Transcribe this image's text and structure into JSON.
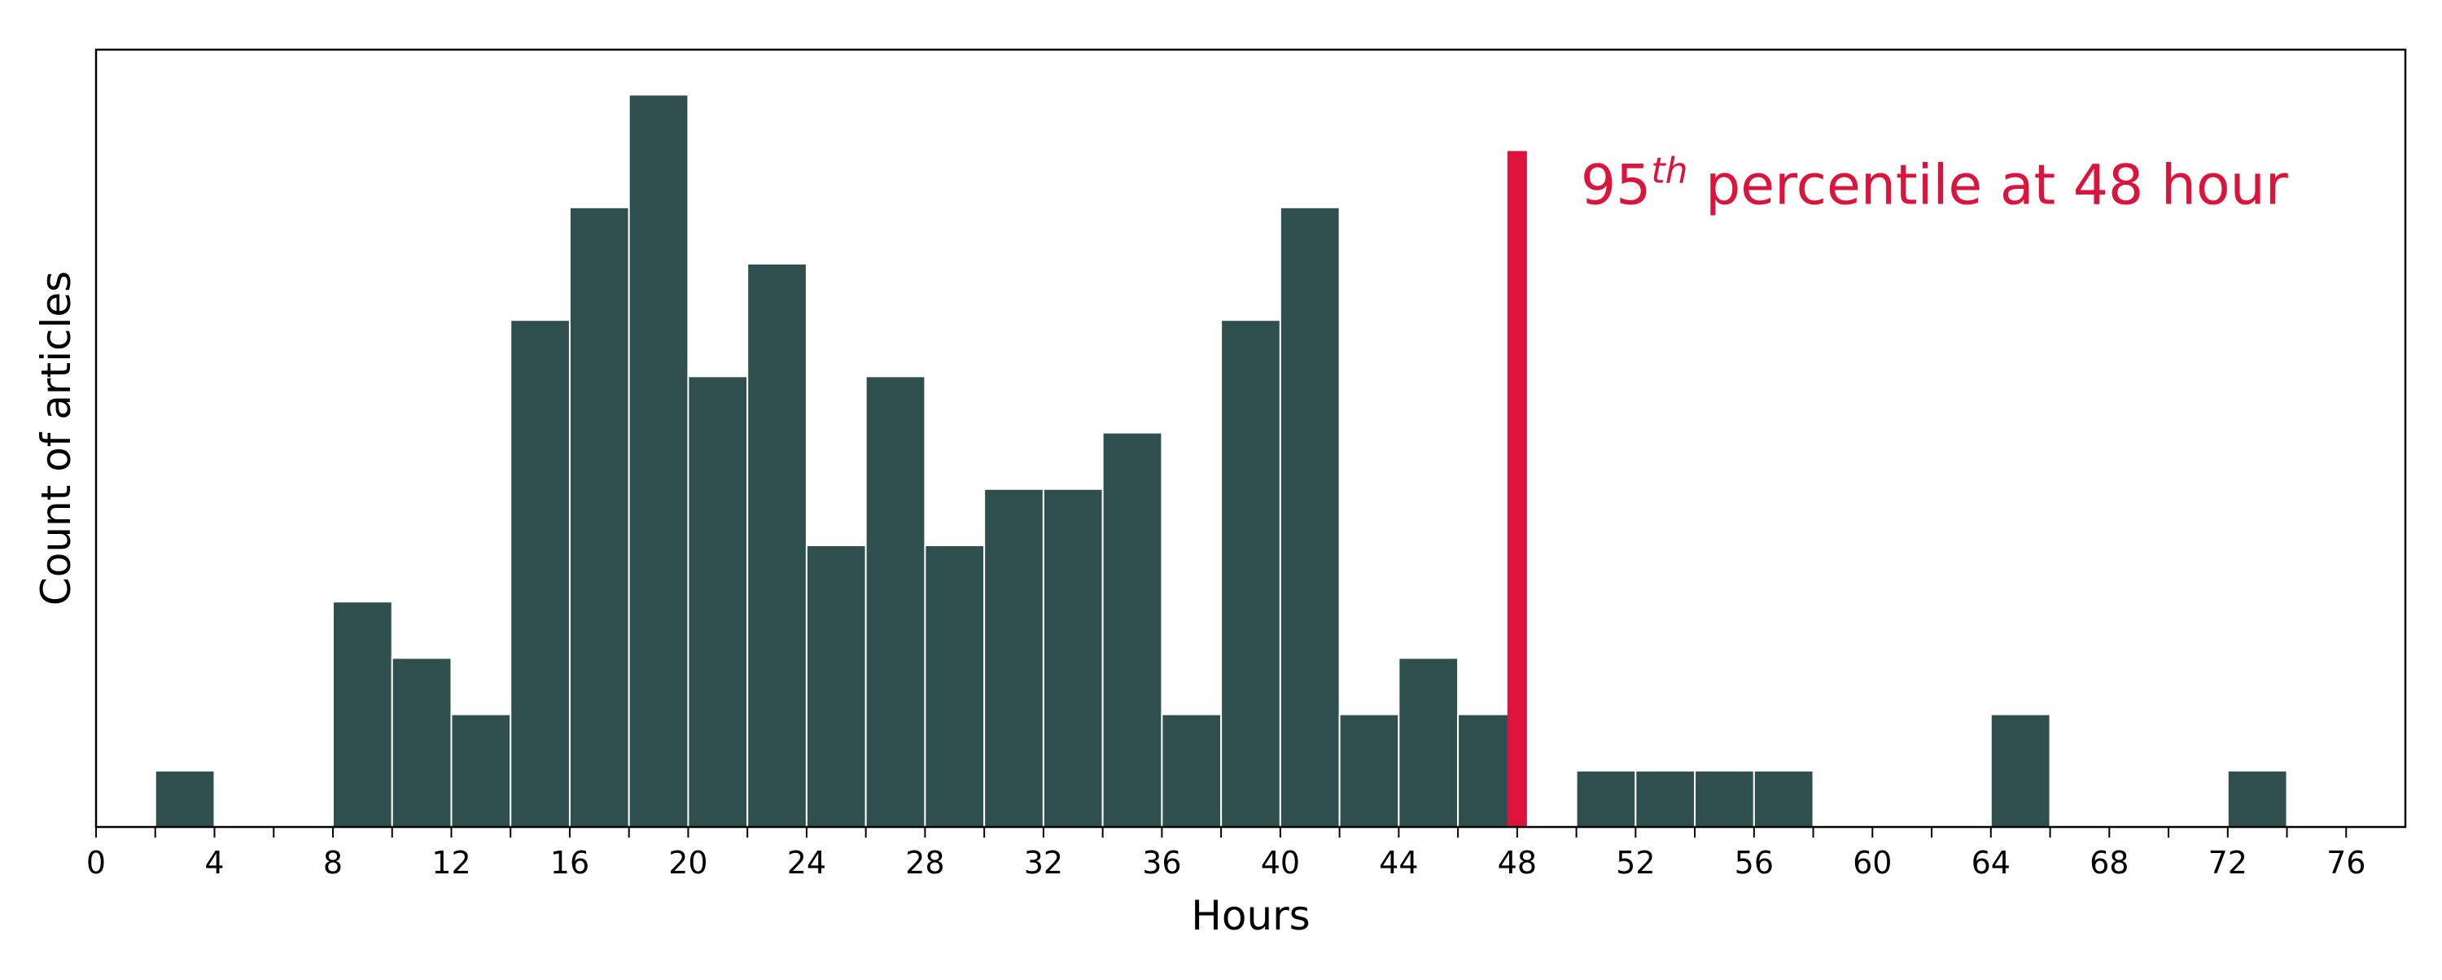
{
  "chart_data": {
    "type": "bar",
    "xlabel": "Hours",
    "ylabel": "Count of articles",
    "xlim": [
      0,
      78
    ],
    "ylim": [
      0,
      13.8
    ],
    "x_ticks": [
      0,
      2,
      4,
      6,
      8,
      10,
      12,
      14,
      16,
      18,
      20,
      22,
      24,
      26,
      28,
      30,
      32,
      34,
      36,
      38,
      40,
      42,
      44,
      46,
      48,
      50,
      52,
      54,
      56,
      58,
      60,
      62,
      64,
      66,
      68,
      70,
      72,
      74,
      76
    ],
    "x_tick_labels": [
      "0",
      "",
      "4",
      "",
      "8",
      "",
      "12",
      "",
      "16",
      "",
      "20",
      "",
      "24",
      "",
      "28",
      "",
      "32",
      "",
      "36",
      "",
      "40",
      "",
      "44",
      "",
      "48",
      "",
      "52",
      "",
      "56",
      "",
      "60",
      "",
      "64",
      "",
      "68",
      "",
      "72",
      "",
      "76"
    ],
    "y_ticks_shown": false,
    "grid": false,
    "bin_width": 2,
    "bins": [
      {
        "start": 2,
        "count": 1
      },
      {
        "start": 8,
        "count": 4
      },
      {
        "start": 10,
        "count": 3
      },
      {
        "start": 12,
        "count": 2
      },
      {
        "start": 14,
        "count": 9
      },
      {
        "start": 16,
        "count": 11
      },
      {
        "start": 18,
        "count": 13
      },
      {
        "start": 20,
        "count": 8
      },
      {
        "start": 22,
        "count": 10
      },
      {
        "start": 24,
        "count": 5
      },
      {
        "start": 26,
        "count": 8
      },
      {
        "start": 28,
        "count": 5
      },
      {
        "start": 30,
        "count": 6
      },
      {
        "start": 32,
        "count": 6
      },
      {
        "start": 34,
        "count": 7
      },
      {
        "start": 36,
        "count": 2
      },
      {
        "start": 38,
        "count": 9
      },
      {
        "start": 40,
        "count": 11
      },
      {
        "start": 42,
        "count": 2
      },
      {
        "start": 44,
        "count": 3
      },
      {
        "start": 46,
        "count": 2
      },
      {
        "start": 50,
        "count": 1
      },
      {
        "start": 52,
        "count": 1
      },
      {
        "start": 54,
        "count": 1
      },
      {
        "start": 56,
        "count": 1
      },
      {
        "start": 64,
        "count": 2
      },
      {
        "start": 72,
        "count": 1
      }
    ],
    "bar_color": "#2f4f4f",
    "marker": {
      "x": 48,
      "height": 12,
      "color": "#dc143c",
      "label_number": "95",
      "label_superscript": "th",
      "label_rest": " percentile at 48 hour"
    }
  }
}
